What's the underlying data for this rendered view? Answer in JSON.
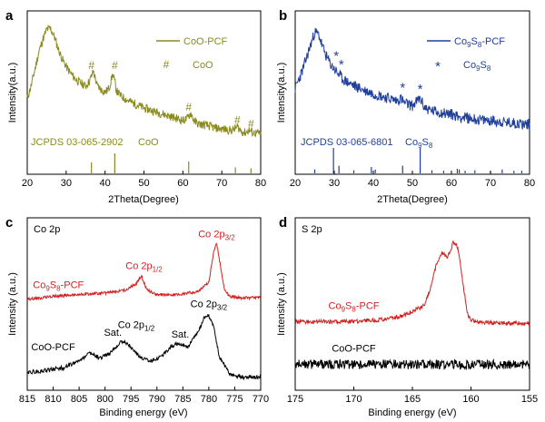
{
  "colors": {
    "olive": "#8a8a1f",
    "blue": "#1f3f9a",
    "red": "#d41f1f",
    "black": "#000000"
  },
  "chart_data": [
    {
      "panel": "a",
      "type": "line",
      "xlabel": "2Theta(Degree)",
      "ylabel": "Intensity(a.u.)",
      "xlim": [
        20,
        80
      ],
      "xticks": [
        "20",
        "30",
        "40",
        "50",
        "60",
        "70",
        "80"
      ],
      "legend": {
        "entry": "CoO-PCF",
        "marker": "#",
        "marker_label": "CoO",
        "placement": "top-right"
      },
      "series": [
        {
          "name": "CoO-PCF",
          "x": [
            20,
            21,
            22,
            23,
            24,
            25,
            26,
            27,
            28,
            29,
            30,
            31,
            32,
            33,
            34,
            35,
            36,
            37,
            38,
            39,
            40,
            41,
            42,
            43,
            44,
            45,
            46,
            48,
            50,
            52,
            54,
            56,
            58,
            60,
            61,
            62,
            63,
            64,
            66,
            68,
            70,
            72,
            73,
            74,
            75,
            76,
            77,
            78,
            80
          ],
          "y": [
            0.42,
            0.52,
            0.66,
            0.8,
            0.9,
            0.98,
            0.99,
            0.92,
            0.82,
            0.74,
            0.68,
            0.63,
            0.59,
            0.56,
            0.54,
            0.52,
            0.56,
            0.64,
            0.52,
            0.49,
            0.47,
            0.5,
            0.62,
            0.48,
            0.44,
            0.42,
            0.4,
            0.37,
            0.34,
            0.32,
            0.3,
            0.28,
            0.26,
            0.24,
            0.25,
            0.3,
            0.23,
            0.21,
            0.2,
            0.18,
            0.17,
            0.16,
            0.16,
            0.19,
            0.15,
            0.14,
            0.16,
            0.14,
            0.13
          ]
        }
      ],
      "annotations": [
        {
          "label": "#",
          "x": 36.5,
          "y": 0.66
        },
        {
          "label": "#",
          "x": 42.5,
          "y": 0.66
        },
        {
          "label": "#",
          "x": 61.5,
          "y": 0.32
        },
        {
          "label": "#",
          "x": 74.0,
          "y": 0.21
        },
        {
          "label": "#",
          "x": 77.5,
          "y": 0.18
        }
      ],
      "reference": {
        "label": "JCPDS 03-065-2902",
        "phase": "CoO",
        "x": [
          36.5,
          42.5,
          61.5,
          73.5,
          77.5
        ],
        "y": [
          0.55,
          1.0,
          0.6,
          0.3,
          0.25
        ]
      }
    },
    {
      "panel": "b",
      "type": "line",
      "xlabel": "2Theta(Degree)",
      "ylabel": "Intensity(a.u.)",
      "xlim": [
        20,
        80
      ],
      "xticks": [
        "20",
        "30",
        "40",
        "50",
        "60",
        "70",
        "80"
      ],
      "legend": {
        "entry": "Co9S8-PCF",
        "marker": "*",
        "marker_label": "Co9S8",
        "placement": "top-right"
      },
      "series": [
        {
          "name": "Co9S8-PCF",
          "x": [
            20,
            21,
            22,
            23,
            24,
            25,
            26,
            27,
            28,
            29,
            30,
            31,
            32,
            34,
            36,
            38,
            40,
            42,
            44,
            46,
            47,
            48,
            50,
            52,
            53,
            54,
            56,
            58,
            60,
            62,
            64,
            66,
            68,
            70,
            72,
            74,
            76,
            78,
            80
          ],
          "y": [
            0.5,
            0.58,
            0.66,
            0.76,
            0.86,
            0.96,
            0.94,
            0.84,
            0.76,
            0.7,
            0.66,
            0.62,
            0.58,
            0.54,
            0.51,
            0.48,
            0.46,
            0.44,
            0.42,
            0.4,
            0.42,
            0.38,
            0.36,
            0.42,
            0.35,
            0.33,
            0.31,
            0.3,
            0.29,
            0.27,
            0.26,
            0.25,
            0.24,
            0.24,
            0.23,
            0.22,
            0.22,
            0.21,
            0.21
          ]
        }
      ],
      "annotations": [
        {
          "label": "*",
          "x": 30.5,
          "y": 0.73
        },
        {
          "label": "*",
          "x": 31.8,
          "y": 0.66
        },
        {
          "label": "*",
          "x": 47.5,
          "y": 0.47
        },
        {
          "label": "*",
          "x": 52.0,
          "y": 0.46
        }
      ],
      "reference": {
        "label": "JCPDS 03-065-6801",
        "phase": "Co9S8",
        "x": [
          25.0,
          29.8,
          31.2,
          35.0,
          39.5,
          40.5,
          47.5,
          52.0,
          55.0,
          58.0,
          61.5,
          62.0,
          63.5,
          66.0,
          70.0,
          73.0,
          76.0,
          78.0
        ],
        "y": [
          0.15,
          1.0,
          0.3,
          0.12,
          0.25,
          0.15,
          0.3,
          1.0,
          0.12,
          0.1,
          0.18,
          0.15,
          0.1,
          0.12,
          0.1,
          0.15,
          0.1,
          0.1
        ]
      }
    },
    {
      "panel": "c",
      "type": "line",
      "title": "Co 2p",
      "xlabel": "Binding energy (eV)",
      "ylabel": "Intensity (a.u.)",
      "xlim": [
        815,
        770
      ],
      "xticks": [
        "815",
        "810",
        "805",
        "800",
        "795",
        "790",
        "785",
        "780",
        "775",
        "770"
      ],
      "series": [
        {
          "name": "Co9S8-PCF",
          "color": "red",
          "x": [
            815,
            810,
            805,
            800,
            796,
            794,
            793,
            792,
            790,
            786,
            782,
            780,
            779,
            778.5,
            778,
            777,
            776,
            774,
            770
          ],
          "y": [
            0.54,
            0.56,
            0.57,
            0.58,
            0.6,
            0.64,
            0.69,
            0.6,
            0.57,
            0.57,
            0.59,
            0.65,
            0.85,
            0.9,
            0.8,
            0.6,
            0.56,
            0.55,
            0.55
          ]
        },
        {
          "name": "CoO-PCF",
          "color": "black",
          "x": [
            815,
            812,
            808,
            805,
            803,
            801,
            799,
            797,
            796,
            795,
            793,
            791,
            789,
            787,
            786,
            784,
            782,
            781,
            780,
            779,
            778,
            776,
            774,
            772,
            770
          ],
          "y": [
            0.08,
            0.09,
            0.11,
            0.15,
            0.2,
            0.17,
            0.2,
            0.27,
            0.27,
            0.24,
            0.17,
            0.15,
            0.18,
            0.25,
            0.26,
            0.24,
            0.34,
            0.42,
            0.44,
            0.36,
            0.18,
            0.07,
            0.05,
            0.05,
            0.05
          ]
        }
      ],
      "labels": [
        {
          "text": "Co 2p",
          "sub": "3/2",
          "x": 778.5,
          "y": 0.93,
          "color": "red"
        },
        {
          "text": "Co 2p",
          "sub": "1/2",
          "x": 792.5,
          "y": 0.73,
          "color": "red"
        },
        {
          "text": "Co9S8-PCF",
          "x": 809,
          "y": 0.61,
          "color": "red"
        },
        {
          "text": "Sat.",
          "x": 798.5,
          "y": 0.31,
          "color": "black"
        },
        {
          "text": "Co 2p",
          "sub": "1/2",
          "x": 794,
          "y": 0.36,
          "color": "black"
        },
        {
          "text": "Sat.",
          "x": 785.5,
          "y": 0.3,
          "color": "black"
        },
        {
          "text": "Co 2p",
          "sub": "3/2",
          "x": 780,
          "y": 0.49,
          "color": "black"
        },
        {
          "text": "CoO-PCF",
          "x": 810,
          "y": 0.22,
          "color": "black"
        }
      ]
    },
    {
      "panel": "d",
      "type": "line",
      "title": "S 2p",
      "xlabel": "Binding energy (eV)",
      "ylabel": "Intensity (a.u.)",
      "xlim": [
        175,
        155
      ],
      "xticks": [
        "175",
        "170",
        "165",
        "160",
        "155"
      ],
      "series": [
        {
          "name": "Co9S8-PCF",
          "color": "red",
          "x": [
            175,
            172,
            170,
            168,
            166,
            164,
            163.5,
            163,
            162.5,
            162.2,
            162,
            161.8,
            161.5,
            161.2,
            161,
            160.8,
            160.5,
            160.3,
            160,
            159.5,
            158,
            156,
            155
          ],
          "y": [
            0.4,
            0.4,
            0.4,
            0.41,
            0.43,
            0.5,
            0.6,
            0.75,
            0.83,
            0.82,
            0.8,
            0.84,
            0.9,
            0.88,
            0.82,
            0.7,
            0.55,
            0.45,
            0.41,
            0.4,
            0.39,
            0.39,
            0.39
          ]
        },
        {
          "name": "CoO-PCF",
          "color": "black",
          "x": [
            175,
            155
          ],
          "y": [
            0.13,
            0.13
          ]
        }
      ],
      "labels": [
        {
          "text": "Co9S8-PCF",
          "x": 170,
          "y": 0.48,
          "color": "red"
        },
        {
          "text": "CoO-PCF",
          "x": 170,
          "y": 0.21,
          "color": "black"
        }
      ]
    }
  ],
  "panel_letters": [
    "a",
    "b",
    "c",
    "d"
  ]
}
